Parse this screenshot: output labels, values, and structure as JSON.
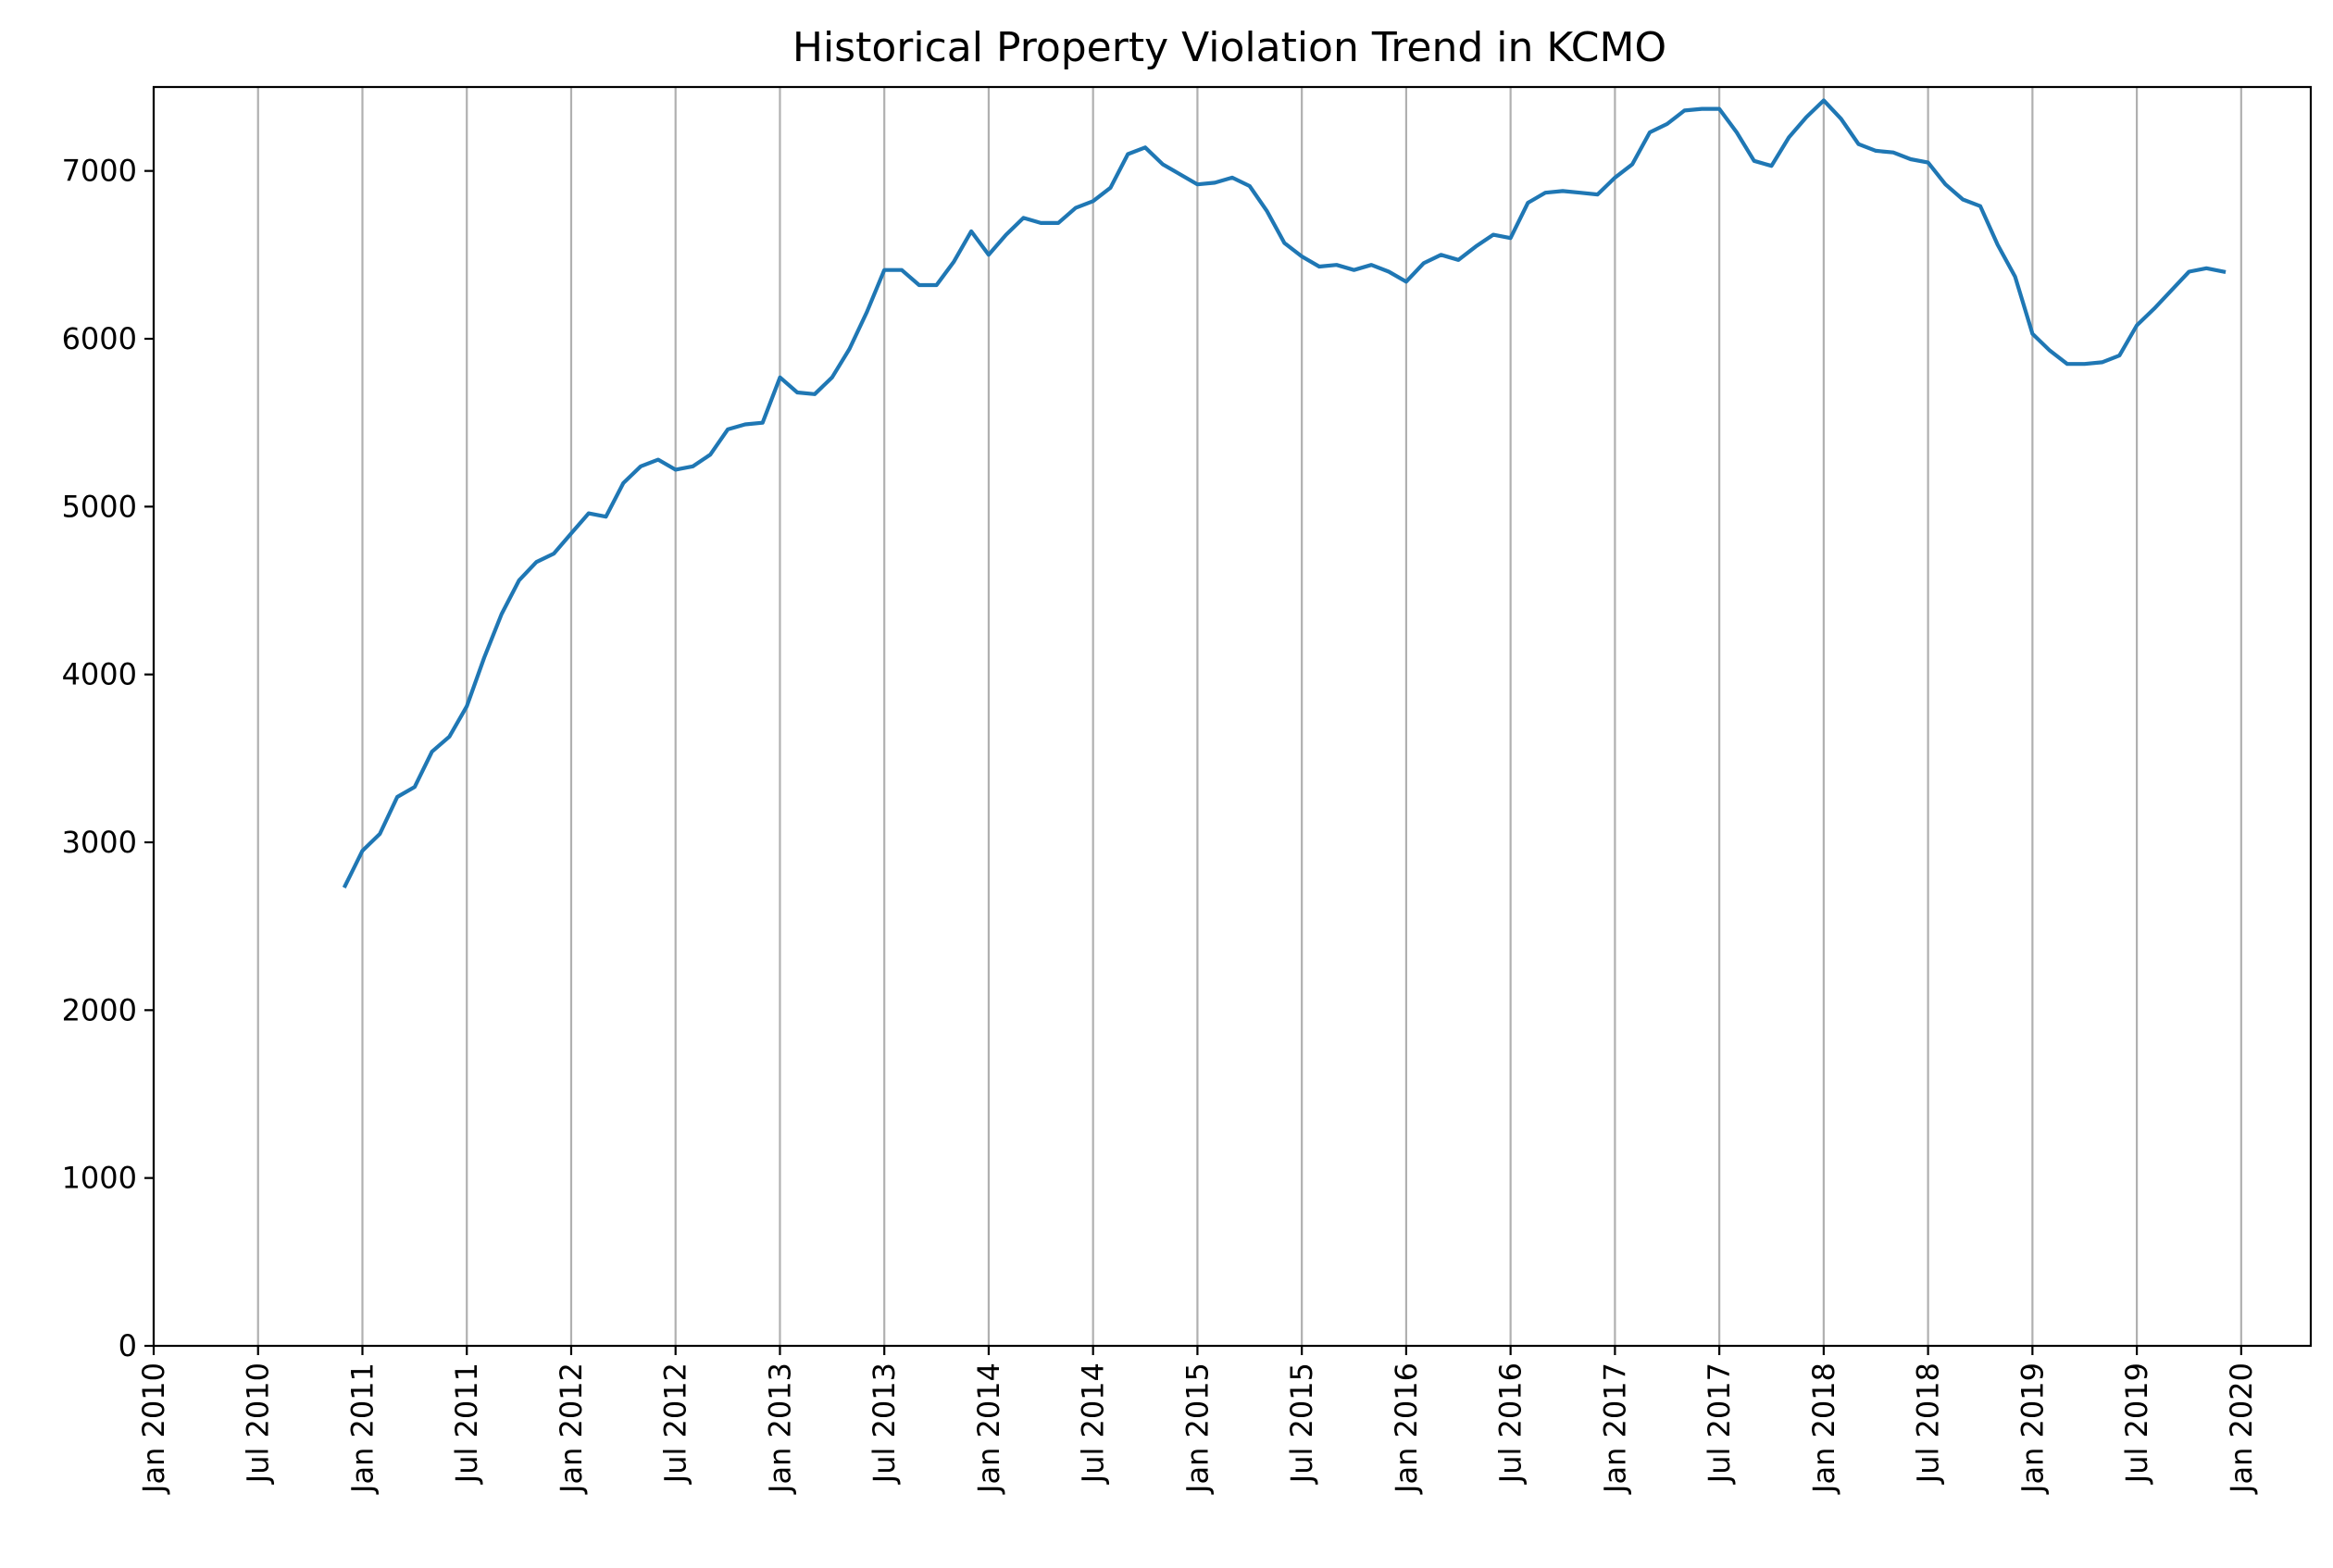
{
  "chart_data": {
    "type": "line",
    "title": "Historical Property Violation Trend in KCMO",
    "xlabel": "",
    "ylabel": "",
    "xlim": [
      "2010-01",
      "2020-05"
    ],
    "ylim": [
      0,
      7500
    ],
    "grid": "vertical",
    "x_ticks": [
      "2010-01",
      "2010-07",
      "2011-01",
      "2011-07",
      "2012-01",
      "2012-07",
      "2013-01",
      "2013-07",
      "2014-01",
      "2014-07",
      "2015-01",
      "2015-07",
      "2016-01",
      "2016-07",
      "2017-01",
      "2017-07",
      "2018-01",
      "2018-07",
      "2019-01",
      "2019-07",
      "2020-01"
    ],
    "x_tick_labels": [
      "Jan 2010",
      "Jul 2010",
      "Jan 2011",
      "Jul 2011",
      "Jan 2012",
      "Jul 2012",
      "Jan 2013",
      "Jul 2013",
      "Jan 2014",
      "Jul 2014",
      "Jan 2015",
      "Jul 2015",
      "Jan 2016",
      "Jul 2016",
      "Jan 2017",
      "Jul 2017",
      "Jan 2018",
      "Jul 2018",
      "Jan 2019",
      "Jul 2019",
      "Jan 2020"
    ],
    "y_ticks": [
      0,
      1000,
      2000,
      3000,
      4000,
      5000,
      6000,
      7000
    ],
    "y_tick_labels": [
      "0",
      "1000",
      "2000",
      "3000",
      "4000",
      "5000",
      "6000",
      "7000"
    ],
    "series": [
      {
        "color": "#1f77b4",
        "x": [
          "2010-12",
          "2011-01",
          "2011-02",
          "2011-03",
          "2011-04",
          "2011-05",
          "2011-06",
          "2011-07",
          "2011-08",
          "2011-09",
          "2011-10",
          "2011-11",
          "2011-12",
          "2012-01",
          "2012-02",
          "2012-03",
          "2012-04",
          "2012-05",
          "2012-06",
          "2012-07",
          "2012-08",
          "2012-09",
          "2012-10",
          "2012-11",
          "2012-12",
          "2013-01",
          "2013-02",
          "2013-03",
          "2013-04",
          "2013-05",
          "2013-06",
          "2013-07",
          "2013-08",
          "2013-09",
          "2013-10",
          "2013-11",
          "2013-12",
          "2014-01",
          "2014-02",
          "2014-03",
          "2014-04",
          "2014-05",
          "2014-06",
          "2014-07",
          "2014-08",
          "2014-09",
          "2014-10",
          "2014-11",
          "2014-12",
          "2015-01",
          "2015-02",
          "2015-03",
          "2015-04",
          "2015-05",
          "2015-06",
          "2015-07",
          "2015-08",
          "2015-09",
          "2015-10",
          "2015-11",
          "2015-12",
          "2016-01",
          "2016-02",
          "2016-03",
          "2016-04",
          "2016-05",
          "2016-06",
          "2016-07",
          "2016-08",
          "2016-09",
          "2016-10",
          "2016-11",
          "2016-12",
          "2017-01",
          "2017-02",
          "2017-03",
          "2017-04",
          "2017-05",
          "2017-06",
          "2017-07",
          "2017-08",
          "2017-09",
          "2017-10",
          "2017-11",
          "2017-12",
          "2018-01",
          "2018-02",
          "2018-03",
          "2018-04",
          "2018-05",
          "2018-06",
          "2018-07",
          "2018-08",
          "2018-09",
          "2018-10",
          "2018-11",
          "2018-12",
          "2019-01",
          "2019-02",
          "2019-03",
          "2019-04",
          "2019-05",
          "2019-06",
          "2019-07",
          "2019-08",
          "2019-09",
          "2019-10",
          "2019-11",
          "2019-12"
        ],
        "y": [
          2740,
          2950,
          3050,
          3270,
          3330,
          3540,
          3630,
          3810,
          4100,
          4360,
          4560,
          4670,
          4720,
          4840,
          4960,
          4940,
          5140,
          5240,
          5280,
          5220,
          5240,
          5310,
          5460,
          5490,
          5500,
          5770,
          5680,
          5670,
          5770,
          5940,
          6160,
          6410,
          6410,
          6320,
          6320,
          6460,
          6640,
          6500,
          6620,
          6720,
          6690,
          6690,
          6780,
          6820,
          6900,
          7100,
          7140,
          7040,
          6980,
          6920,
          6930,
          6960,
          6910,
          6760,
          6570,
          6490,
          6430,
          6440,
          6410,
          6440,
          6400,
          6340,
          6450,
          6500,
          6470,
          6550,
          6620,
          6600,
          6810,
          6870,
          6880,
          6870,
          6860,
          6960,
          7040,
          7230,
          7280,
          7360,
          7370,
          7370,
          7230,
          7060,
          7030,
          7200,
          7320,
          7420,
          7310,
          7160,
          7120,
          7110,
          7070,
          7050,
          6920,
          6830,
          6790,
          6560,
          6370,
          6030,
          5930,
          5850,
          5850,
          5860,
          5900,
          6080,
          6180,
          6290,
          6400,
          6420,
          6400
        ]
      }
    ]
  }
}
